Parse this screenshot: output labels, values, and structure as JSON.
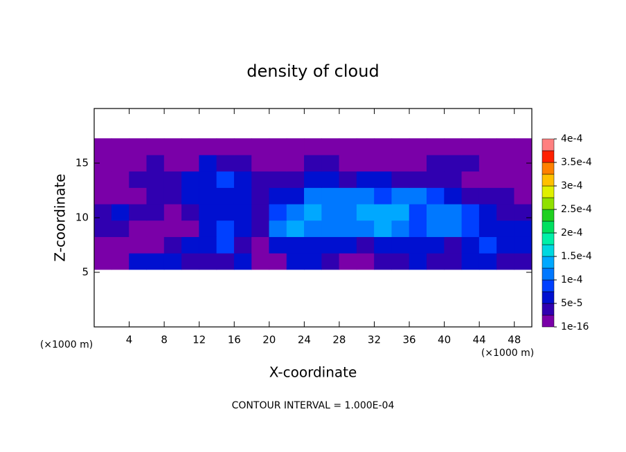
{
  "chart_data": {
    "type": "contour",
    "title": "density of cloud",
    "x_label": "X-coordinate",
    "y_label": "Z-coordinate",
    "x_unit": "(×1000 m)",
    "y_unit": "(×1000 m)",
    "footer": "CONTOUR INTERVAL = 1.000E-04",
    "xlim": [
      0,
      50
    ],
    "ylim": [
      0,
      20
    ],
    "xticks": [
      4,
      8,
      12,
      16,
      20,
      24,
      28,
      32,
      36,
      40,
      44,
      48
    ],
    "yticks": [
      5,
      10,
      15
    ],
    "x": [
      1,
      3,
      5,
      7,
      9,
      11,
      13,
      15,
      17,
      19,
      21,
      23,
      25,
      27,
      29,
      31,
      33,
      35,
      37,
      39,
      41,
      43,
      45,
      47,
      49
    ],
    "y": [
      6,
      7.5,
      9,
      10.5,
      12,
      13.5,
      15,
      16.5
    ],
    "z": [
      [
        1e-05,
        2e-05,
        5e-05,
        5e-05,
        5e-05,
        4e-05,
        3e-05,
        4e-05,
        5e-05,
        2e-05,
        2e-05,
        5e-05,
        5e-05,
        4e-05,
        2e-05,
        2e-05,
        3e-05,
        4e-05,
        5e-05,
        4e-05,
        3e-05,
        5e-05,
        5e-05,
        4e-05,
        3e-05
      ],
      [
        1e-05,
        1e-05,
        1e-05,
        1e-05,
        3e-05,
        5e-05,
        6e-05,
        8e-05,
        3e-05,
        2e-05,
        5e-05,
        7e-05,
        6e-05,
        6e-05,
        5e-05,
        4e-05,
        5e-05,
        6e-05,
        6e-05,
        5e-05,
        4e-05,
        6e-05,
        8e-05,
        5e-05,
        5e-05
      ],
      [
        3e-05,
        3e-05,
        2e-05,
        1e-05,
        1e-05,
        1e-05,
        5e-05,
        8e-05,
        7e-05,
        3e-05,
        0.0001,
        0.00013,
        0.00012,
        0.00011,
        0.0001,
        0.00012,
        0.00013,
        0.00012,
        8e-05,
        0.00011,
        0.00012,
        8e-05,
        5e-05,
        5e-05,
        7e-05
      ],
      [
        4e-05,
        5e-05,
        4e-05,
        3e-05,
        2e-05,
        3e-05,
        5e-05,
        6e-05,
        5e-05,
        4e-05,
        8e-05,
        0.00011,
        0.00013,
        0.00012,
        0.00012,
        0.00013,
        0.00013,
        0.00013,
        9e-05,
        0.00012,
        0.00011,
        8e-05,
        5e-05,
        4e-05,
        4e-05
      ],
      [
        2e-05,
        1e-05,
        2e-05,
        3e-05,
        4e-05,
        5e-05,
        6e-05,
        7e-05,
        6e-05,
        4e-05,
        5e-05,
        7e-05,
        0.0001,
        0.00011,
        0.00011,
        0.00011,
        9e-05,
        0.0001,
        0.0001,
        8e-05,
        5e-05,
        4e-05,
        3e-05,
        3e-05,
        2e-05
      ],
      [
        1e-05,
        2e-05,
        3e-05,
        3e-05,
        4e-05,
        5e-05,
        7e-05,
        9e-05,
        6e-05,
        4e-05,
        3e-05,
        4e-05,
        6e-05,
        5e-05,
        4e-05,
        5e-05,
        5e-05,
        4e-05,
        4e-05,
        3e-05,
        3e-05,
        2e-05,
        2e-05,
        2e-05,
        1e-05
      ],
      [
        1e-05,
        2e-05,
        2e-05,
        3e-05,
        2e-05,
        1e-05,
        5e-05,
        4e-05,
        3e-05,
        2e-05,
        1e-05,
        2e-05,
        3e-05,
        3e-05,
        2e-05,
        2e-05,
        2e-05,
        2e-05,
        2e-05,
        3e-05,
        4e-05,
        3e-05,
        2e-05,
        1e-05,
        1e-05
      ],
      [
        1e-05,
        1e-05,
        1e-05,
        1e-05,
        1e-05,
        1e-05,
        1e-05,
        1e-05,
        1e-05,
        1e-05,
        1e-05,
        1e-05,
        1e-05,
        1e-05,
        1e-05,
        1e-05,
        1e-05,
        1e-05,
        1e-05,
        1e-05,
        1e-05,
        1e-05,
        1e-05,
        1e-05,
        1e-05
      ]
    ],
    "colorbar_lim": [
      0,
      0.0004
    ],
    "colorbar_ticks": [
      {
        "value": 1e-16,
        "label": "1e-16"
      },
      {
        "value": 5e-05,
        "label": "5e-5"
      },
      {
        "value": 0.0001,
        "label": "1e-4"
      },
      {
        "value": 0.00015,
        "label": "1.5e-4"
      },
      {
        "value": 0.0002,
        "label": "2e-4"
      },
      {
        "value": 0.00025,
        "label": "2.5e-4"
      },
      {
        "value": 0.0003,
        "label": "3e-4"
      },
      {
        "value": 0.00035,
        "label": "3.5e-4"
      },
      {
        "value": 0.0004,
        "label": "4e-4"
      }
    ],
    "colors": [
      "#7a00a8",
      "#3000b0",
      "#0010d0",
      "#0040ff",
      "#0078ff",
      "#00a8ff",
      "#00d8e0",
      "#00f0a8",
      "#00e060",
      "#20d020",
      "#90e000",
      "#e0f000",
      "#ffc000",
      "#ff8000",
      "#ff2000",
      "#ff8080"
    ]
  }
}
